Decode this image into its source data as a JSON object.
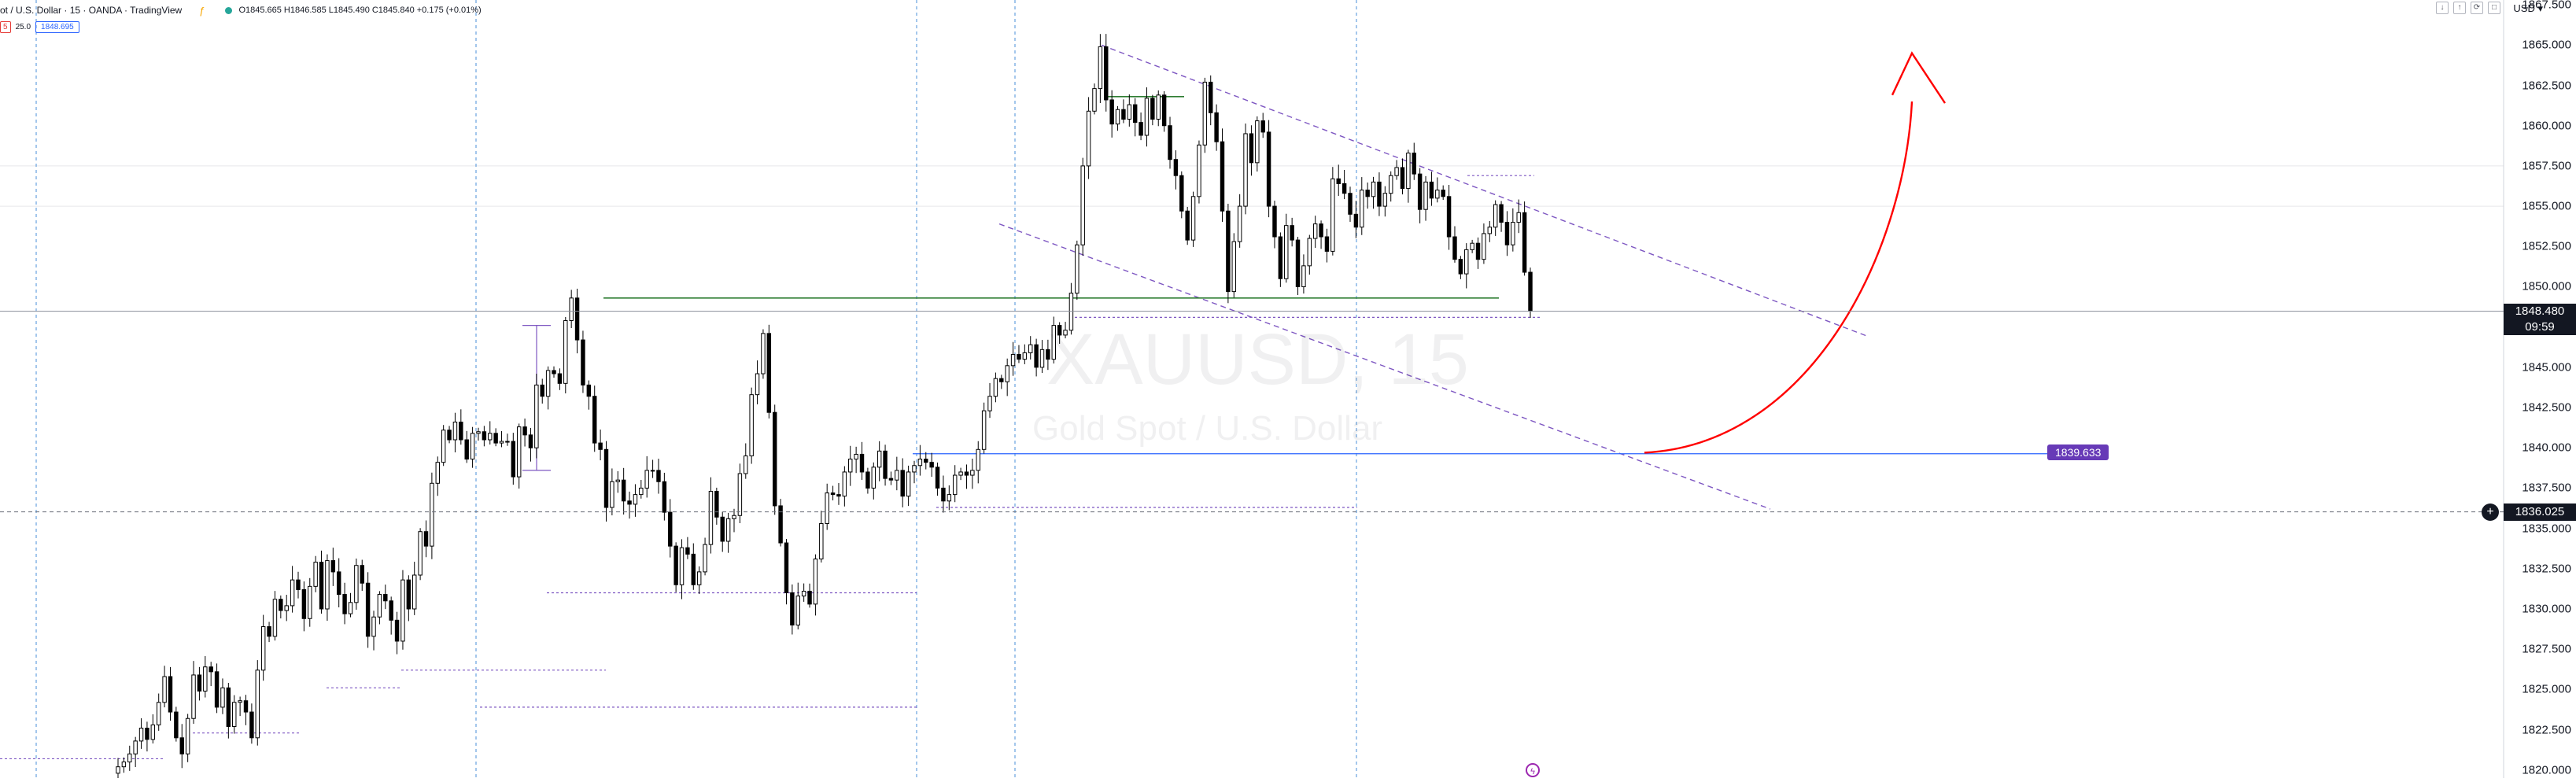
{
  "header": {
    "symbol_title": "ot / U.S. Dollar · 15 · OANDA · TradingView",
    "alert_glyph": "ƒ",
    "ohlc": "O1845.665 H1846.585 L1845.490 C1845.840 +0.175 (+0.01%)",
    "status_color": "#26a69a",
    "sub_badge_1": "5",
    "sub_value": "25.0",
    "sub_badge_2": "1848.695"
  },
  "top_right": {
    "currency": "USD",
    "controls": [
      "↓",
      "↑",
      "⟳",
      "□"
    ]
  },
  "watermark": {
    "ticker": "XAUUSD, 15",
    "description": "Gold Spot / U.S. Dollar"
  },
  "price_axis": {
    "labels": [
      "1867.500",
      "1865.000",
      "1862.500",
      "1860.000",
      "1857.500",
      "1855.000",
      "1852.500",
      "1850.000",
      "1847.500",
      "1845.000",
      "1842.500",
      "1840.000",
      "1837.500",
      "1835.000",
      "1832.500",
      "1830.000",
      "1827.500",
      "1825.000",
      "1822.500",
      "1820.000"
    ]
  },
  "current_price": {
    "value": "1848.480",
    "countdown": "09:59",
    "color": "#131722"
  },
  "target_level": {
    "value": "1839.633",
    "color": "#673ab7"
  },
  "crosshair": {
    "value": "1836.025",
    "button_glyph": "+"
  },
  "colors": {
    "up": "#ffffff",
    "down": "#000000",
    "wick": "#000000",
    "trendline": "#7e57c2",
    "support": "#2e7d32",
    "drawing_red": "#ff0000",
    "blue_line": "#2962ff",
    "grid_dash": "#4a8fd8"
  },
  "chart_data": {
    "type": "candlestick",
    "symbol": "XAUUSD",
    "timeframe": "15",
    "ylim": [
      1819.5,
      1867.8
    ],
    "candles_close_path": [
      1820.2,
      1820.5,
      1821.0,
      1821.8,
      1822.6,
      1821.9,
      1822.8,
      1824.2,
      1825.8,
      1823.6,
      1822.0,
      1821.0,
      1823.2,
      1825.9,
      1824.9,
      1826.4,
      1826.1,
      1823.9,
      1825.1,
      1822.7,
      1824.2,
      1824.3,
      1823.6,
      1822.0,
      1826.2,
      1828.9,
      1828.3,
      1830.6,
      1829.9,
      1830.2,
      1831.8,
      1831.2,
      1829.4,
      1831.4,
      1832.9,
      1830.0,
      1833.0,
      1832.3,
      1830.9,
      1829.7,
      1830.4,
      1832.7,
      1831.6,
      1828.3,
      1829.5,
      1830.9,
      1830.5,
      1829.3,
      1828.0,
      1831.8,
      1830.0,
      1832.1,
      1834.8,
      1833.9,
      1837.8,
      1839.1,
      1841.1,
      1840.5,
      1841.6,
      1840.5,
      1839.3,
      1840.9,
      1841.0,
      1840.5,
      1840.9,
      1840.3,
      1840.4,
      1840.4,
      1838.2,
      1841.3,
      1840.8,
      1840.0,
      1843.9,
      1843.2,
      1844.8,
      1844.6,
      1844.0,
      1847.9,
      1849.3,
      1846.7,
      1843.9,
      1843.2,
      1840.3,
      1839.9,
      1836.3,
      1837.9,
      1838.0,
      1836.7,
      1836.5,
      1837.1,
      1837.5,
      1838.6,
      1838.6,
      1837.9,
      1836.0,
      1833.9,
      1831.5,
      1833.8,
      1833.4,
      1831.5,
      1832.3,
      1834.0,
      1837.3,
      1835.7,
      1834.2,
      1835.6,
      1835.8,
      1838.4,
      1839.5,
      1843.3,
      1844.6,
      1847.1,
      1842.2,
      1836.4,
      1834.1,
      1831.0,
      1829.0,
      1830.8,
      1831.1,
      1830.3,
      1833.1,
      1835.3,
      1837.2,
      1837.1,
      1837.0,
      1838.5,
      1839.3,
      1839.6,
      1838.5,
      1837.5,
      1838.8,
      1839.8,
      1838.1,
      1838.0,
      1838.6,
      1837.0,
      1838.5,
      1838.9,
      1839.3,
      1839.1,
      1838.8,
      1837.5,
      1836.7,
      1837.1,
      1838.3,
      1838.5,
      1838.3,
      1838.6,
      1839.9,
      1842.3,
      1843.2,
      1844.3,
      1844.1,
      1845.1,
      1845.8,
      1845.5,
      1845.9,
      1846.4,
      1845.0,
      1846.1,
      1845.5,
      1847.6,
      1847.0,
      1847.3,
      1849.6,
      1852.6,
      1857.5,
      1860.9,
      1862.3,
      1864.9,
      1861.6,
      1860.1,
      1861.0,
      1860.4,
      1861.3,
      1860.2,
      1859.4,
      1861.7,
      1860.4,
      1861.9,
      1860.0,
      1857.9,
      1856.9,
      1854.7,
      1852.9,
      1855.6,
      1858.8,
      1862.7,
      1860.8,
      1859.0,
      1854.7,
      1849.7,
      1852.8,
      1855.0,
      1859.5,
      1857.7,
      1860.3,
      1859.6,
      1855.0,
      1853.1,
      1850.5,
      1853.8,
      1852.9,
      1850.0,
      1851.3,
      1853.0,
      1853.9,
      1853.1,
      1852.2,
      1856.7,
      1856.4,
      1855.8,
      1854.5,
      1853.7,
      1856.0,
      1855.6,
      1856.5,
      1855.0,
      1855.8,
      1856.9,
      1857.4,
      1856.1,
      1858.3,
      1857.0,
      1854.8,
      1856.5,
      1855.5,
      1856.0,
      1855.6,
      1853.1,
      1851.7,
      1850.8,
      1852.3,
      1852.7,
      1851.7,
      1853.3,
      1853.7,
      1855.1,
      1854.0,
      1852.6,
      1854.0,
      1854.6,
      1850.9,
      1848.5
    ],
    "annotations": {
      "support_line_y": 1849.3,
      "resistance_segment_y": 1861.8,
      "target_level_y": 1839.633,
      "current_price_y": 1848.48,
      "crosshair_y": 1836.025
    }
  }
}
